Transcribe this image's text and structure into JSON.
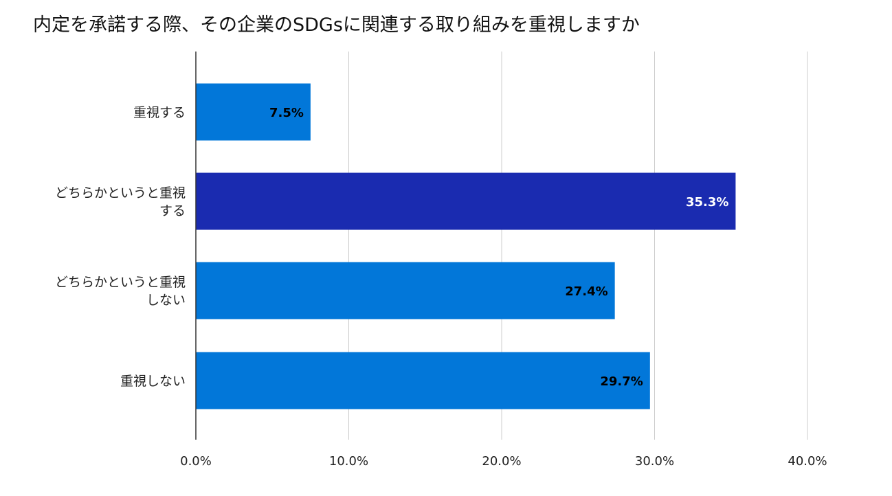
{
  "chart_data": {
    "type": "bar",
    "orientation": "horizontal",
    "title": "内定を承諾する際、その企業のSDGsに関連する取り組みを重視しますか",
    "categories": [
      "重視する",
      "どちらかというと重視する",
      "どちらかというと重視しない",
      "重視しない"
    ],
    "category_label_lines": [
      [
        "重視する"
      ],
      [
        "どちらかというと重視",
        "する"
      ],
      [
        "どちらかというと重視",
        "しない"
      ],
      [
        "重視しない"
      ]
    ],
    "values": [
      7.5,
      35.3,
      27.4,
      29.7
    ],
    "data_labels": [
      "7.5%",
      "35.3%",
      "27.4%",
      "29.7%"
    ],
    "bar_colors": [
      "#0277d9",
      "#1a2bb0",
      "#0277d9",
      "#0277d9"
    ],
    "data_label_colors": [
      "#000000",
      "#ffffff",
      "#000000",
      "#000000"
    ],
    "xlim": [
      0,
      40
    ],
    "xticks": [
      0,
      10,
      20,
      30,
      40
    ],
    "xtick_labels": [
      "0.0%",
      "10.0%",
      "20.0%",
      "30.0%",
      "40.0%"
    ],
    "grid": true,
    "legend": "none"
  }
}
